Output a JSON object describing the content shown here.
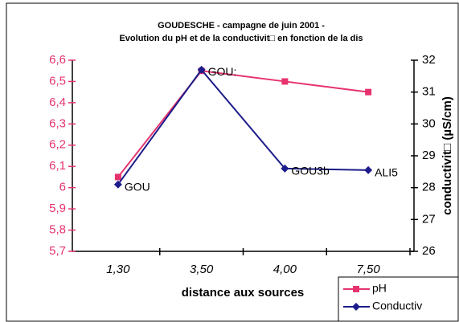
{
  "chart_data": {
    "type": "line",
    "title": "GOUDESCHE - campagne de juin 2001 -",
    "subtitle": "Evolution du pH et de la conductivit□ en fonction de la dis",
    "x_label": "distance aux sources",
    "y2_label": "conductivit□ (µS/cm)",
    "categories": [
      "1,30",
      "3,50",
      "4,00",
      "7,50"
    ],
    "series": [
      {
        "name": "pH",
        "color": "#e6336e",
        "values": [
          6.05,
          6.55,
          6.5,
          6.45
        ]
      },
      {
        "name": "Conductiv",
        "color": "#1c1c8a",
        "axis": "y2",
        "values": [
          28.1,
          31.7,
          28.6,
          28.55
        ]
      }
    ],
    "point_labels": [
      "GOU",
      "GOU:",
      "GOU3b",
      "ALI5"
    ],
    "ylim": [
      5.7,
      6.6
    ],
    "yticks": [
      {
        "value": 5.7,
        "label": "5,7"
      },
      {
        "value": 5.8,
        "label": "5,8"
      },
      {
        "value": 5.9,
        "label": "5,9"
      },
      6,
      {
        "value": 6.1,
        "label": "6,1"
      },
      {
        "value": 6.2,
        "label": "6,2"
      },
      {
        "value": 6.3,
        "label": "6,3"
      },
      {
        "value": 6.4,
        "label": "6,4"
      },
      {
        "value": 6.5,
        "label": "6,5"
      },
      {
        "value": 6.6,
        "label": "6,6"
      }
    ],
    "y2lim": [
      26,
      32
    ],
    "y2ticks": [
      26,
      27,
      28,
      29,
      30,
      31,
      32
    ],
    "grid": false,
    "legend": "bottom-right"
  }
}
